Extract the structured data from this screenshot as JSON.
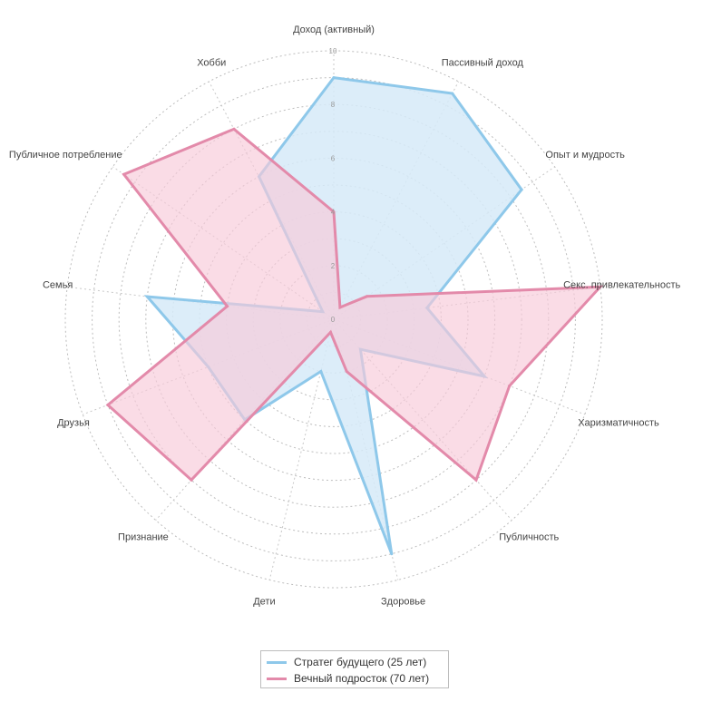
{
  "chart_data": {
    "type": "radar",
    "axes": [
      "Доход (активный)",
      "Пассивный доход",
      "Опыт и мудрость",
      "Секс. привлекательность",
      "Харизматичность",
      "Публичность",
      "Здоровье",
      "Дети",
      "Признание",
      "Друзья",
      "Семья",
      "Публичное потребление",
      "Хобби"
    ],
    "rlim": [
      0,
      10
    ],
    "ticks": [
      2,
      4,
      6,
      8,
      10
    ],
    "grid": true,
    "legend_position": "bottom-center",
    "series": [
      {
        "name": "Стратег будущего (25 лет)",
        "color": "#8ec8ea",
        "fill": "#d6eaf8",
        "values": [
          9,
          9.5,
          8.5,
          3.5,
          6,
          1.5,
          9,
          2,
          5,
          5,
          7,
          0.5,
          6
        ]
      },
      {
        "name": "Вечный подросток (70 лет)",
        "color": "#e38aaa",
        "fill": "#f7cad9",
        "values": [
          4,
          0.5,
          1.5,
          10,
          7,
          8,
          2,
          0.5,
          8,
          9,
          4,
          9.5,
          8
        ]
      }
    ]
  }
}
